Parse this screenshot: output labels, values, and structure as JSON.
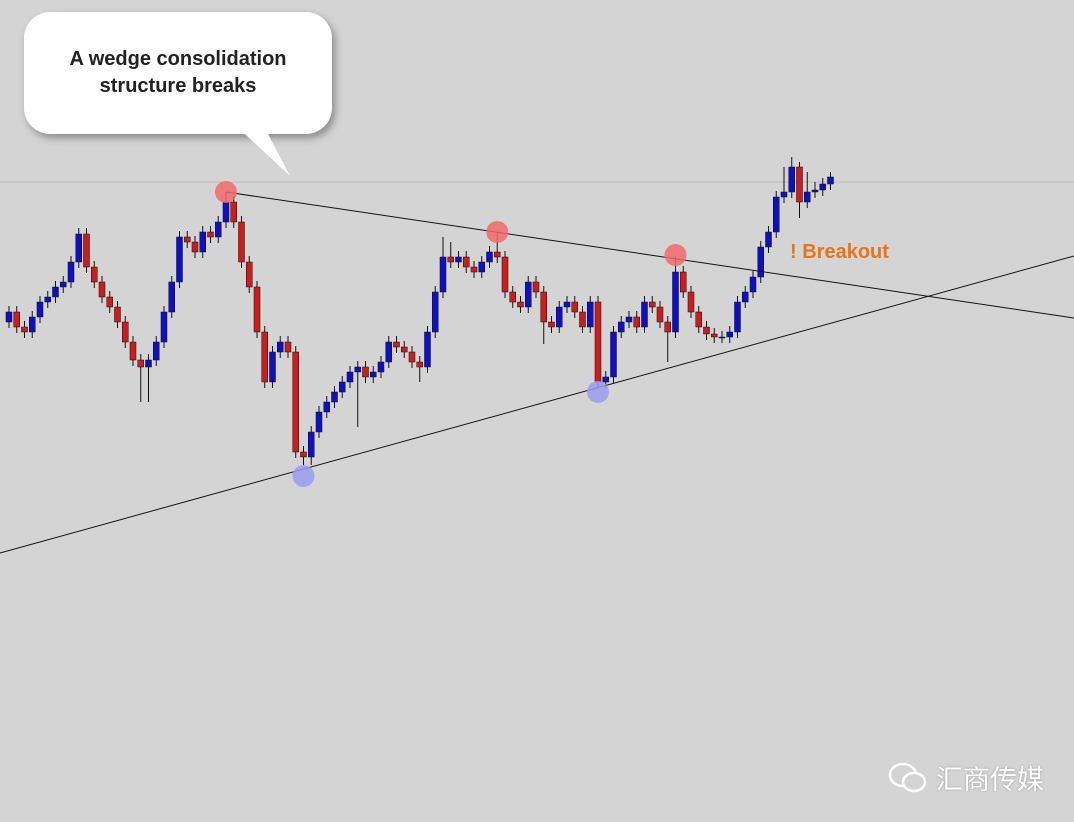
{
  "chart_data": {
    "type": "candlestick",
    "annotation": [
      "A wedge consolidation",
      "structure breaks"
    ],
    "breakout_label": "! Breakout",
    "watermark": "汇商传媒",
    "xlim": [
      -1.16,
      137.42
    ],
    "ylim": [
      0,
      822
    ],
    "hline": 640,
    "hline_color": "#bbbbbb",
    "up_color": "#1010c0",
    "down_color": "#c81e1e",
    "open": [
      500,
      510,
      495,
      490,
      505,
      520,
      525,
      535,
      540,
      560,
      588,
      555,
      540,
      525,
      515,
      500,
      480,
      462,
      455,
      462,
      480,
      510,
      540,
      585,
      580,
      570,
      590,
      585,
      600,
      620,
      600,
      560,
      535,
      490,
      440,
      470,
      480,
      470,
      370,
      365,
      390,
      410,
      420,
      430,
      440,
      450,
      455,
      445,
      450,
      460,
      480,
      475,
      470,
      460,
      455,
      490,
      530,
      565,
      560,
      565,
      555,
      550,
      560,
      570,
      565,
      530,
      520,
      515,
      540,
      530,
      500,
      495,
      515,
      520,
      510,
      495,
      520,
      440,
      445,
      490,
      500,
      505,
      495,
      520,
      515,
      500,
      490,
      550,
      530,
      510,
      495,
      488,
      485,
      485,
      490,
      520,
      530,
      545,
      575,
      590,
      625,
      630,
      655,
      620,
      630,
      632,
      638
    ],
    "high": [
      516,
      516,
      501,
      511,
      526,
      531,
      541,
      546,
      566,
      594,
      594,
      561,
      546,
      531,
      521,
      506,
      486,
      468,
      468,
      486,
      516,
      546,
      591,
      591,
      586,
      596,
      596,
      606,
      630,
      626,
      606,
      566,
      541,
      496,
      476,
      486,
      486,
      476,
      376,
      396,
      416,
      426,
      436,
      446,
      456,
      461,
      461,
      456,
      466,
      486,
      486,
      481,
      476,
      466,
      496,
      536,
      585,
      580,
      571,
      571,
      561,
      566,
      576,
      590,
      571,
      536,
      526,
      546,
      546,
      536,
      506,
      521,
      526,
      526,
      516,
      526,
      526,
      451,
      496,
      506,
      511,
      511,
      526,
      526,
      521,
      506,
      566,
      556,
      536,
      516,
      501,
      494,
      491,
      496,
      526,
      536,
      551,
      581,
      596,
      631,
      655,
      665,
      660,
      650,
      640,
      644,
      650
    ],
    "low": [
      494,
      489,
      484,
      484,
      499,
      514,
      519,
      529,
      534,
      554,
      549,
      534,
      519,
      509,
      494,
      474,
      456,
      420,
      420,
      456,
      474,
      504,
      534,
      574,
      564,
      564,
      579,
      579,
      594,
      594,
      554,
      529,
      484,
      434,
      434,
      464,
      464,
      364,
      357,
      357,
      384,
      404,
      414,
      424,
      434,
      395,
      439,
      439,
      444,
      454,
      469,
      464,
      454,
      440,
      449,
      484,
      524,
      554,
      554,
      549,
      544,
      544,
      554,
      559,
      524,
      514,
      509,
      509,
      524,
      478,
      489,
      489,
      509,
      504,
      489,
      489,
      434,
      434,
      439,
      484,
      494,
      489,
      489,
      509,
      494,
      460,
      484,
      524,
      504,
      489,
      482,
      479,
      479,
      479,
      484,
      514,
      524,
      539,
      569,
      584,
      619,
      624,
      604,
      614,
      624,
      626,
      632
    ],
    "close": [
      510,
      495,
      490,
      505,
      520,
      525,
      535,
      540,
      560,
      588,
      555,
      540,
      525,
      515,
      500,
      480,
      462,
      455,
      462,
      480,
      510,
      540,
      585,
      580,
      570,
      590,
      585,
      600,
      620,
      600,
      560,
      535,
      490,
      440,
      470,
      480,
      470,
      370,
      365,
      390,
      410,
      420,
      430,
      440,
      450,
      455,
      445,
      450,
      460,
      480,
      475,
      470,
      460,
      455,
      490,
      530,
      565,
      560,
      565,
      555,
      550,
      560,
      570,
      565,
      530,
      520,
      515,
      540,
      530,
      500,
      495,
      515,
      520,
      510,
      495,
      520,
      440,
      445,
      490,
      500,
      505,
      495,
      520,
      515,
      500,
      490,
      550,
      530,
      510,
      495,
      488,
      485,
      485,
      490,
      520,
      530,
      545,
      575,
      590,
      625,
      630,
      655,
      620,
      630,
      632,
      638,
      645
    ],
    "trendlines": [
      {
        "x": [
          28,
          137.42
        ],
        "y": [
          630,
          504
        ],
        "color": "#111111"
      },
      {
        "x": [
          -1.16,
          137.42
        ],
        "y": [
          269,
          566
        ],
        "color": "#111111"
      }
    ],
    "markers": [
      {
        "x": 28,
        "y": 630,
        "color": "#f06a6a"
      },
      {
        "x": 63,
        "y": 590,
        "color": "#f06a6a"
      },
      {
        "x": 86,
        "y": 567,
        "color": "#f06a6a"
      },
      {
        "x": 38,
        "y": 346,
        "color": "#9b9bf0"
      },
      {
        "x": 76,
        "y": 430,
        "color": "#9b9bf0"
      }
    ]
  }
}
